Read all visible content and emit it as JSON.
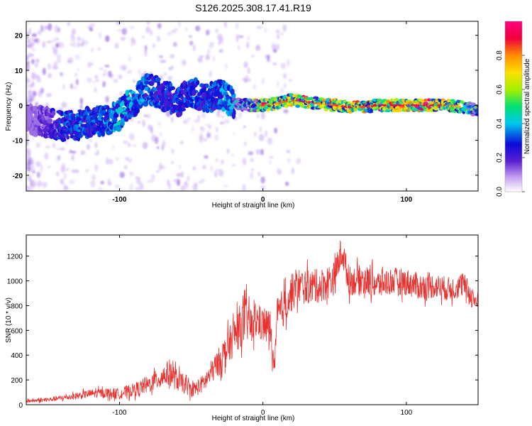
{
  "title": "S126.2025.308.17.41.R19",
  "colors": {
    "snr_line": "#e8322f",
    "ridge_peak": "#e8262c",
    "frame": "#000000",
    "colormap": [
      "#ffffff",
      "#c9a6f2",
      "#5a1fd0",
      "#0b0bd8",
      "#00c8f0",
      "#00e070",
      "#a6f000",
      "#ffe000",
      "#ff8c00",
      "#f0003c",
      "#ff007f"
    ]
  },
  "chart_data": [
    {
      "type": "heatmap",
      "name": "spectrogram",
      "xlabel": "Height of straight line (km)",
      "ylabel": "Frequency (Hz)",
      "xlim": [
        -165,
        150
      ],
      "ylim": [
        -24.5,
        24
      ],
      "xticks": [
        -100,
        0,
        100
      ],
      "xtick_labels": [
        "-100",
        "0",
        "100"
      ],
      "yticks": [
        20,
        10,
        0,
        -10,
        -20
      ],
      "ytick_labels": [
        "20",
        "10",
        "0",
        "-10",
        "-20"
      ],
      "colorbar": {
        "label": "Normalized spectral amplitude",
        "range": [
          0,
          1
        ],
        "ticks": [
          0.0,
          0.2,
          0.4,
          0.6,
          0.8
        ],
        "tick_labels": [
          "0.0",
          "0.2",
          "0.4",
          "0.6",
          "0.8"
        ]
      },
      "ridge": {
        "x": [
          -165,
          -150,
          -140,
          -130,
          -120,
          -110,
          -100,
          -90,
          -80,
          -70,
          -60,
          -50,
          -40,
          -30,
          -20,
          -10,
          0,
          10,
          20,
          30,
          40,
          50,
          60,
          70,
          80,
          90,
          100,
          110,
          120,
          130,
          140,
          150
        ],
        "freq": [
          -4,
          -5,
          -6,
          -5.5,
          -5,
          -4.5,
          -2.5,
          1,
          5,
          3,
          1,
          4,
          2,
          3,
          0.5,
          0,
          0,
          0.5,
          1.5,
          1,
          0.5,
          0,
          -0.5,
          -0.5,
          0,
          0,
          0,
          0,
          0,
          0,
          -0.5,
          -1.5
        ],
        "amplitude": [
          0.1,
          0.2,
          0.3,
          0.35,
          0.3,
          0.35,
          0.4,
          0.35,
          0.35,
          0.3,
          0.3,
          0.35,
          0.3,
          0.35,
          0.4,
          0.45,
          0.85,
          0.8,
          0.85,
          0.9,
          0.8,
          0.85,
          0.9,
          0.85,
          0.9,
          0.9,
          0.95,
          0.95,
          0.9,
          0.85,
          0.7,
          0.5
        ]
      }
    },
    {
      "type": "line",
      "name": "snr",
      "xlabel": "Height of straight line (km)",
      "ylabel": "SNR (10 * v/v)",
      "xlim": [
        -165,
        150
      ],
      "ylim": [
        0,
        1370
      ],
      "xticks": [
        -100,
        0,
        100
      ],
      "xtick_labels": [
        "-100",
        "0",
        "100"
      ],
      "yticks": [
        0,
        200,
        400,
        600,
        800,
        1000,
        1200
      ],
      "ytick_labels": [
        "0",
        "200",
        "400",
        "600",
        "800",
        "1000",
        "1200"
      ],
      "series": [
        {
          "name": "SNR",
          "x": [
            -165,
            -150,
            -140,
            -130,
            -120,
            -110,
            -100,
            -90,
            -80,
            -70,
            -65,
            -60,
            -55,
            -50,
            -45,
            -40,
            -35,
            -30,
            -25,
            -20,
            -15,
            -10,
            -8,
            -5,
            0,
            5,
            8,
            10,
            15,
            20,
            25,
            30,
            40,
            50,
            55,
            60,
            70,
            80,
            90,
            100,
            110,
            120,
            130,
            140,
            145,
            150
          ],
          "values": [
            30,
            40,
            55,
            70,
            90,
            95,
            90,
            120,
            160,
            230,
            260,
            200,
            160,
            120,
            140,
            190,
            280,
            360,
            450,
            560,
            650,
            700,
            620,
            680,
            640,
            620,
            280,
            700,
            800,
            900,
            960,
            950,
            960,
            1020,
            1250,
            1000,
            1010,
            970,
            1000,
            990,
            950,
            960,
            930,
            970,
            880,
            820
          ],
          "noise_amplitude": [
            15,
            18,
            22,
            28,
            35,
            40,
            45,
            55,
            70,
            90,
            110,
            90,
            70,
            60,
            65,
            80,
            100,
            120,
            140,
            160,
            180,
            200,
            150,
            150,
            140,
            160,
            60,
            170,
            160,
            150,
            150,
            140,
            140,
            140,
            130,
            120,
            120,
            120,
            110,
            110,
            110,
            100,
            100,
            100,
            90,
            90
          ]
        }
      ]
    }
  ]
}
